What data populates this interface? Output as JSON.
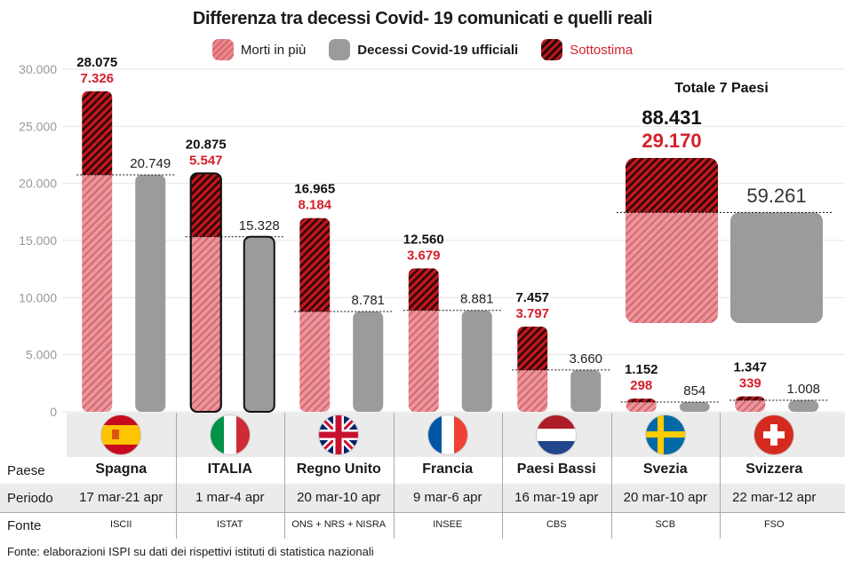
{
  "title": "Differenza tra decessi Covid- 19 comunicati e quelli reali",
  "legend": [
    {
      "label": "Morti in più",
      "kind": "extra"
    },
    {
      "label": "Decessi Covid-19 ufficiali",
      "kind": "official"
    },
    {
      "label": "Sottostima",
      "kind": "under"
    }
  ],
  "colors": {
    "extra": "#e5858d",
    "official": "#9b9b9b",
    "under": "#b8121a",
    "underline": "#d4202a"
  },
  "chart_data": {
    "type": "bar",
    "ylim": [
      0,
      30000
    ],
    "yticks": [
      "0",
      "5.000",
      "10.000",
      "15.000",
      "20.000",
      "25.000",
      "30.000"
    ],
    "series": [
      {
        "name": "Morti in più",
        "values": [
          28075,
          20875,
          16965,
          12560,
          7457,
          1152,
          1347
        ]
      },
      {
        "name": "Sottostima",
        "values": [
          7326,
          5547,
          8184,
          3679,
          3797,
          298,
          339
        ]
      },
      {
        "name": "Decessi Covid-19 ufficiali",
        "values": [
          20749,
          15328,
          8781,
          8881,
          3660,
          854,
          1008
        ]
      }
    ],
    "labels": {
      "total": [
        "28.075",
        "20.875",
        "16.965",
        "12.560",
        "7.457",
        "1.152",
        "1.347"
      ],
      "under": [
        "7.326",
        "5.547",
        "8.184",
        "3.679",
        "3.797",
        "298",
        "339"
      ],
      "official": [
        "20.749",
        "15.328",
        "8.781",
        "8.881",
        "3.660",
        "854",
        "1.008"
      ]
    },
    "total_panel": {
      "title": "Totale 7 Paesi",
      "total": 88431,
      "under": 29170,
      "official": 59261,
      "total_label": "88.431",
      "under_label": "29.170",
      "official_label": "59.261"
    }
  },
  "table": {
    "row_labels": {
      "paese": "Paese",
      "periodo": "Periodo",
      "fonte": "Fonte"
    },
    "countries": [
      {
        "name": "Spagna",
        "period": "17 mar-21 apr",
        "source": "ISCII",
        "flag": "spain-flag"
      },
      {
        "name": "ITALIA",
        "period": "1 mar-4 apr",
        "source": "ISTAT",
        "flag": "italy-flag"
      },
      {
        "name": "Regno Unito",
        "period": "20 mar-10 apr",
        "source": "ONS + NRS + NISRA",
        "flag": "uk-flag"
      },
      {
        "name": "Francia",
        "period": "9 mar-6 apr",
        "source": "INSEE",
        "flag": "france-flag"
      },
      {
        "name": "Paesi Bassi",
        "period": "16 mar-19 apr",
        "source": "CBS",
        "flag": "netherlands-flag"
      },
      {
        "name": "Svezia",
        "period": "20 mar-10 apr",
        "source": "SCB",
        "flag": "sweden-flag"
      },
      {
        "name": "Svizzera",
        "period": "22 mar-12 apr",
        "source": "FSO",
        "flag": "switzerland-flag"
      }
    ]
  },
  "footer": "Fonte: elaborazioni ISPI su dati dei rispettivi istituti di statistica nazionali"
}
